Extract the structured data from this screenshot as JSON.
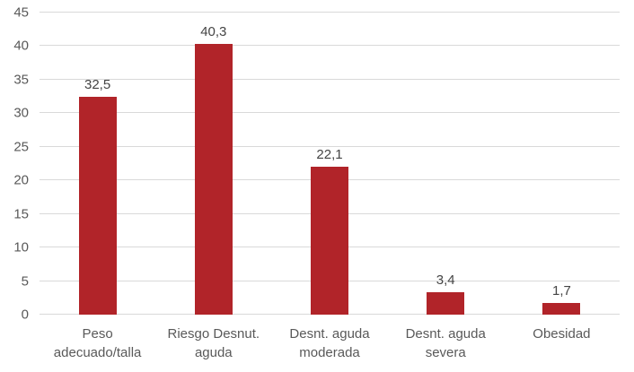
{
  "chart_data": {
    "type": "bar",
    "title": "",
    "xlabel": "",
    "ylabel": "",
    "categories": [
      "Peso adecuado/talla",
      "Riesgo Desnut. aguda",
      "Desnt. aguda moderada",
      "Desnt. aguda severa",
      "Obesidad"
    ],
    "category_lines": [
      [
        "Peso",
        "adecuado/talla"
      ],
      [
        "Riesgo Desnut.",
        "aguda"
      ],
      [
        "Desnt. aguda",
        "moderada"
      ],
      [
        "Desnt. aguda",
        "severa"
      ],
      [
        "Obesidad"
      ]
    ],
    "values": [
      32.5,
      40.3,
      22.1,
      3.4,
      1.7
    ],
    "data_labels": [
      "32,5",
      "40,3",
      "22,1",
      "3,4",
      "1,7"
    ],
    "ylim": [
      0,
      45
    ],
    "yticks": [
      0,
      5,
      10,
      15,
      20,
      25,
      30,
      35,
      40,
      45
    ],
    "ytick_labels": [
      "0",
      "5",
      "10",
      "15",
      "20",
      "25",
      "30",
      "35",
      "40",
      "45"
    ],
    "grid": true,
    "legend": false,
    "colors": {
      "bar": "#b12429",
      "gridline": "#d9d9d9",
      "axis_text": "#595959",
      "data_label_text": "#444444",
      "background": "#ffffff"
    }
  }
}
